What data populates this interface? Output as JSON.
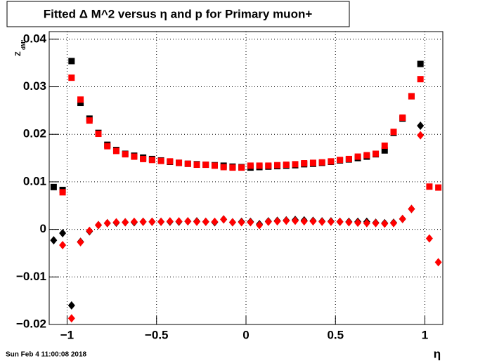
{
  "chart_data": {
    "type": "scatter",
    "title": "Fitted Δ M^2 versus η and p for Primary muon+",
    "x_label": "η",
    "y_label": "Z",
    "y_label_sub": "dM²",
    "timestamp": "Sun Feb  4 11:00:08 2018",
    "xlim": [
      -1.1,
      1.1
    ],
    "ylim": [
      -0.02,
      0.0416
    ],
    "xticks": [
      {
        "value": -1,
        "label": "−1"
      },
      {
        "value": -0.5,
        "label": "−0.5"
      },
      0,
      0.5,
      1
    ],
    "yticks": [
      {
        "value": -0.02,
        "label": "−0.02"
      },
      {
        "value": -0.01,
        "label": "−0.01"
      },
      0,
      0.01,
      0.02,
      0.03,
      0.04
    ],
    "grid": true,
    "x": [
      -1.075,
      -1.025,
      -0.975,
      -0.925,
      -0.875,
      -0.825,
      -0.775,
      -0.725,
      -0.675,
      -0.625,
      -0.575,
      -0.525,
      -0.475,
      -0.425,
      -0.375,
      -0.325,
      -0.275,
      -0.225,
      -0.175,
      -0.125,
      -0.075,
      -0.025,
      0.025,
      0.075,
      0.125,
      0.175,
      0.225,
      0.275,
      0.325,
      0.375,
      0.425,
      0.475,
      0.525,
      0.575,
      0.625,
      0.675,
      0.725,
      0.775,
      0.825,
      0.875,
      0.925,
      0.975,
      1.025,
      1.075
    ],
    "series": [
      {
        "color": "#000000",
        "marker": "square",
        "values": [
          0.0089,
          0.0083,
          0.0354,
          0.0266,
          0.0233,
          0.0203,
          0.0178,
          0.0167,
          0.0159,
          0.0155,
          0.0151,
          0.0148,
          0.0145,
          0.0142,
          0.014,
          0.0138,
          0.0137,
          0.0136,
          0.0135,
          0.0134,
          0.0132,
          0.0131,
          0.013,
          0.0131,
          0.0132,
          0.0133,
          0.0134,
          0.0135,
          0.0137,
          0.0138,
          0.014,
          0.0142,
          0.0145,
          0.0147,
          0.015,
          0.0153,
          0.0158,
          0.0166,
          0.0203,
          0.0233,
          0.028,
          0.0348,
          null,
          null
        ]
      },
      {
        "color": "#ff0000",
        "marker": "square",
        "values": [
          null,
          0.0078,
          0.0319,
          0.0273,
          0.0229,
          0.0201,
          0.0175,
          0.0165,
          0.0158,
          0.0153,
          0.0148,
          0.0146,
          0.0144,
          0.0143,
          0.014,
          0.0138,
          0.0136,
          0.0136,
          0.0134,
          0.0131,
          0.013,
          0.013,
          0.0134,
          0.0134,
          0.0134,
          0.0135,
          0.0136,
          0.0137,
          0.0139,
          0.014,
          0.0141,
          0.0143,
          0.0146,
          0.0148,
          0.0153,
          0.0156,
          0.0159,
          0.0176,
          0.0205,
          0.0235,
          0.028,
          0.0316,
          0.009,
          0.0088
        ]
      },
      {
        "color": "#000000",
        "marker": "diamond",
        "values": [
          -0.0023,
          -0.0008,
          -0.016,
          -0.0026,
          -0.0004,
          0.0009,
          0.0013,
          0.0014,
          0.0015,
          0.0015,
          0.0016,
          0.0016,
          0.0016,
          0.0016,
          0.0016,
          0.0017,
          0.0017,
          0.0016,
          0.0015,
          0.0021,
          0.0015,
          0.0016,
          0.0016,
          0.0011,
          0.0017,
          0.0018,
          0.0019,
          0.002,
          0.0019,
          0.0018,
          0.0017,
          0.0017,
          0.0016,
          0.0016,
          0.0016,
          0.0016,
          0.0014,
          0.0013,
          0.0014,
          0.0022,
          0.0043,
          0.0218,
          null,
          null
        ]
      },
      {
        "color": "#ff0000",
        "marker": "diamond",
        "values": [
          null,
          -0.0033,
          -0.0187,
          -0.0027,
          -0.0003,
          0.0009,
          0.0013,
          0.0015,
          0.0015,
          0.0016,
          0.0016,
          0.0016,
          0.0016,
          0.0017,
          0.0017,
          0.0017,
          0.0016,
          0.0016,
          0.0016,
          0.0021,
          0.0015,
          0.0015,
          0.0015,
          0.0009,
          0.0016,
          0.0017,
          0.0018,
          0.0018,
          0.0017,
          0.0017,
          0.0016,
          0.0016,
          0.0016,
          0.0015,
          0.0014,
          0.0013,
          0.0013,
          0.0012,
          0.0013,
          0.0022,
          0.0043,
          0.0198,
          -0.0019,
          -0.0069
        ]
      }
    ]
  }
}
